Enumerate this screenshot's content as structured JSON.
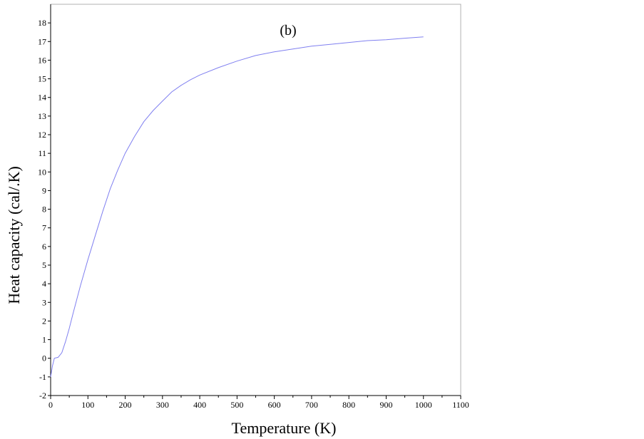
{
  "chart_data": {
    "type": "line",
    "annotation": "(b)",
    "xlabel": "Temperature (K)",
    "ylabel": "Heat capacity (cal/.K)",
    "xlim": [
      0,
      1100
    ],
    "ylim": [
      -2,
      19
    ],
    "x_ticks": [
      0,
      100,
      200,
      300,
      400,
      500,
      600,
      700,
      800,
      900,
      1000,
      1100
    ],
    "y_ticks": [
      -2,
      -1,
      0,
      1,
      2,
      3,
      4,
      5,
      6,
      7,
      8,
      9,
      10,
      11,
      12,
      13,
      14,
      15,
      16,
      17,
      18
    ],
    "grid": false,
    "line_color": "#8080f0",
    "series": [
      {
        "x": [
          0,
          5,
          10,
          20,
          30,
          40,
          50,
          60,
          80,
          100,
          120,
          140,
          160,
          180,
          200,
          225,
          250,
          275,
          300,
          325,
          350,
          375,
          400,
          450,
          500,
          550,
          600,
          650,
          700,
          750,
          800,
          850,
          900,
          950,
          1000
        ],
        "values": [
          -1.0,
          -0.4,
          0.0,
          0.05,
          0.3,
          0.9,
          1.6,
          2.4,
          3.9,
          5.3,
          6.6,
          7.9,
          9.1,
          10.1,
          11.0,
          11.9,
          12.7,
          13.3,
          13.8,
          14.3,
          14.65,
          14.95,
          15.2,
          15.6,
          15.95,
          16.25,
          16.45,
          16.6,
          16.75,
          16.85,
          16.95,
          17.05,
          17.1,
          17.18,
          17.25
        ]
      }
    ]
  }
}
